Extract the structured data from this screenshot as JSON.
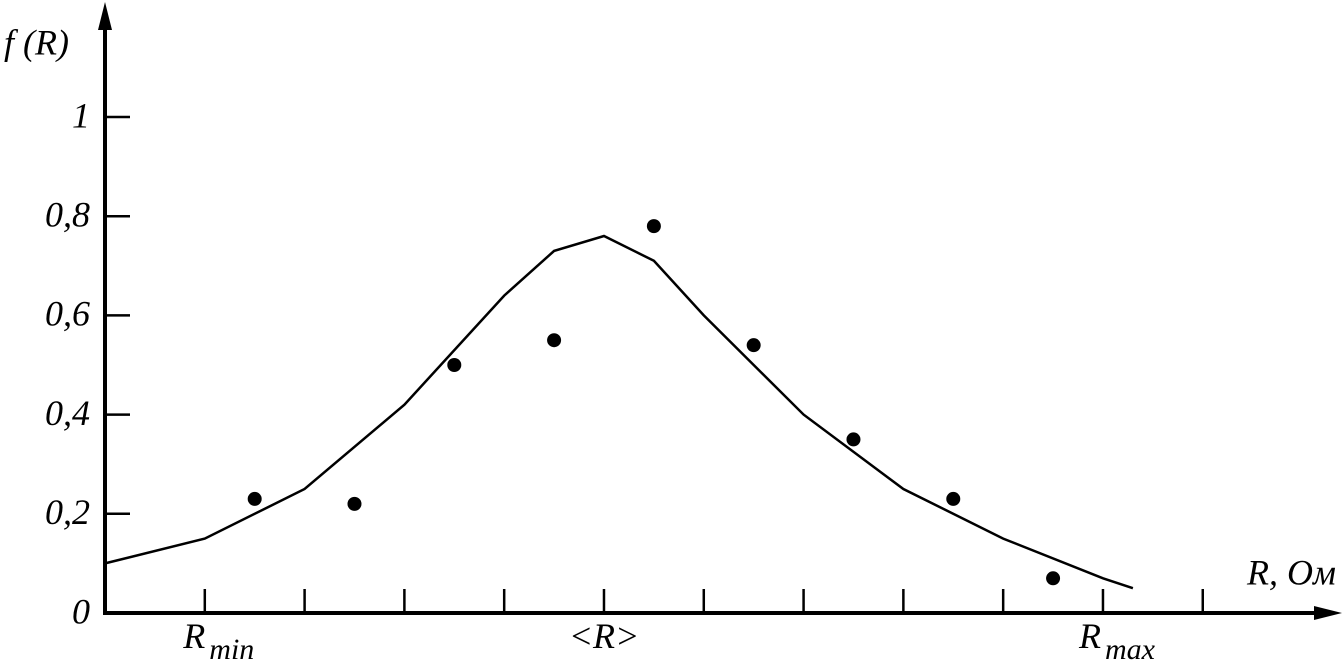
{
  "chart_data": {
    "type": "scatter",
    "y_label": "f (R)",
    "x_label": "R, Ом",
    "xlim": [
      0,
      12.3
    ],
    "ylim": [
      0,
      1.225
    ],
    "xticks": [
      1,
      2,
      3,
      4,
      5,
      6,
      7,
      8,
      9,
      10,
      11
    ],
    "xtick_labels": [
      {
        "value": 1,
        "label": "R",
        "subscript": "min"
      },
      {
        "value": 5,
        "label": "<R>"
      },
      {
        "value": 10,
        "label": "R",
        "subscript": "max"
      }
    ],
    "yticks": [
      0,
      {
        "value": 0.2,
        "label": "0,2"
      },
      {
        "value": 0.4,
        "label": "0,4"
      },
      {
        "value": 0.6,
        "label": "0,6"
      },
      {
        "value": 0.8,
        "label": "0,8"
      },
      1
    ],
    "color": "#000000",
    "points": {
      "x": [
        1.5,
        2.5,
        3.5,
        4.5,
        5.5,
        6.5,
        7.5,
        8.5,
        9.5
      ],
      "y": [
        0.23,
        0.22,
        0.5,
        0.55,
        0.78,
        0.54,
        0.35,
        0.23,
        0.07
      ]
    },
    "curve": {
      "x": [
        0,
        1,
        2,
        3,
        4,
        4.5,
        5,
        5.5,
        6,
        7,
        8,
        9,
        10,
        10.3
      ],
      "y": [
        0.1,
        0.15,
        0.25,
        0.42,
        0.64,
        0.73,
        0.76,
        0.71,
        0.6,
        0.4,
        0.25,
        0.15,
        0.07,
        0.05
      ]
    }
  }
}
